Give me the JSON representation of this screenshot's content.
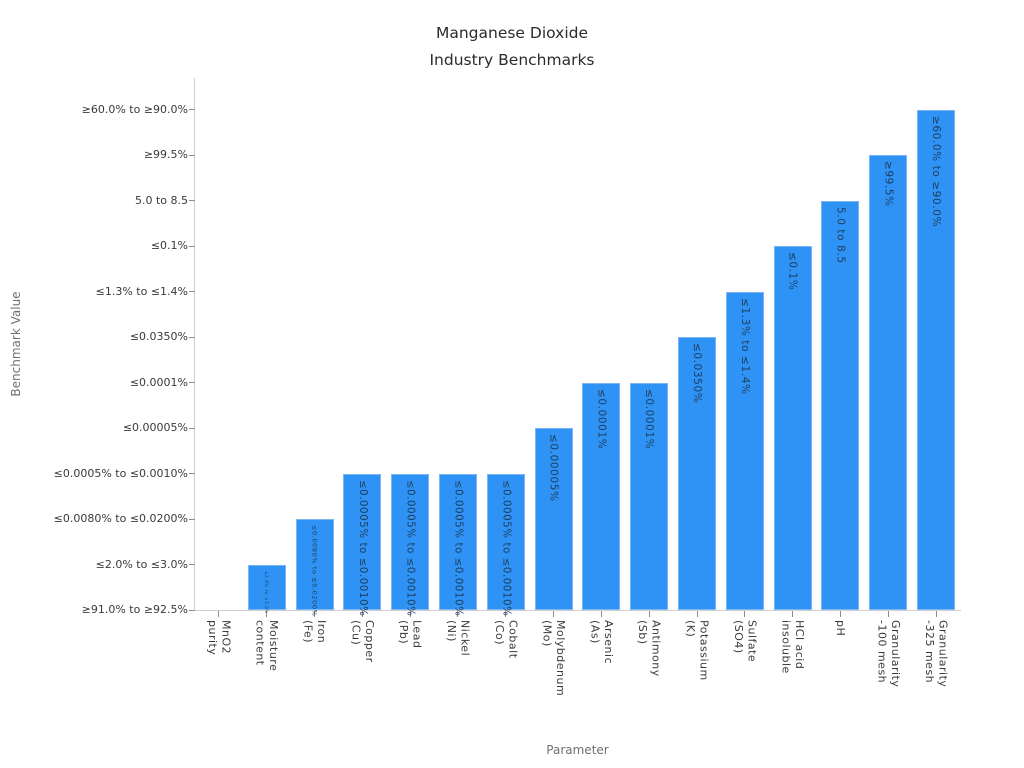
{
  "chart_data": {
    "type": "bar",
    "title": "Manganese Dioxide Industry Benchmarks",
    "title_lines": [
      "Manganese Dioxide",
      "Industry Benchmarks"
    ],
    "xlabel": "Parameter",
    "ylabel": "Benchmark Value",
    "y_tick_labels": [
      "≥91.0% to ≥92.5%",
      "≤2.0% to ≤3.0%",
      "≤0.0080% to ≤0.0200%",
      "≤0.0005% to ≤0.0010%",
      "≤0.00005%",
      "≤0.0001%",
      "≤0.0350%",
      "≤1.3% to ≤1.4%",
      "≤0.1%",
      "5.0 to 8.5",
      "≥99.5%",
      "≥60.0% to ≥90.0%"
    ],
    "categories": [
      "MnO2\npurity",
      "Moisture\ncontent",
      "Iron\n(Fe)",
      "Copper\n(Cu)",
      "Lead\n(Pb)",
      "Nickel\n(Ni)",
      "Cobalt\n(Co)",
      "Molybdenum\n(Mo)",
      "Arsenic\n(As)",
      "Antimony\n(Sb)",
      "Potassium\n(K)",
      "Sulfate\n(SO4)",
      "HCl acid\ninsoluble",
      "pH",
      "Granularity\n-100 mesh",
      "Granularity\n-325 mesh"
    ],
    "values": [
      0,
      1,
      2,
      3,
      3,
      3,
      3,
      4,
      5,
      5,
      6,
      7,
      8,
      9,
      10,
      11
    ],
    "bar_labels": [
      "",
      "≤2.0% to ≤3.0%",
      "≤0.0080% to ≤0.0200%",
      "≤0.0005% to ≤0.0010%",
      "≤0.0005% to ≤0.0010%",
      "≤0.0005% to ≤0.0010%",
      "≤0.0005% to ≤0.0010%",
      "≤0.00005%",
      "≤0.0001%",
      "≤0.0001%",
      "≤0.0350%",
      "≤1.3% to ≤1.4%",
      "≤0.1%",
      "5.0 to 8.5",
      "≥99.5%",
      "≥60.0% to ≥90.0%"
    ],
    "ylim": [
      0,
      11
    ],
    "grid": false,
    "legend": null,
    "colors": {
      "bar": "#2E93F5",
      "bar_edge": "#7ab6f5",
      "bar_label": "#1e3d5c",
      "tick_label": "#3a3a3a",
      "axis_title": "#707070",
      "title": "#2b2b2b",
      "spine": "#cfcfcf",
      "tick_mark": "#8c8c8c"
    }
  }
}
